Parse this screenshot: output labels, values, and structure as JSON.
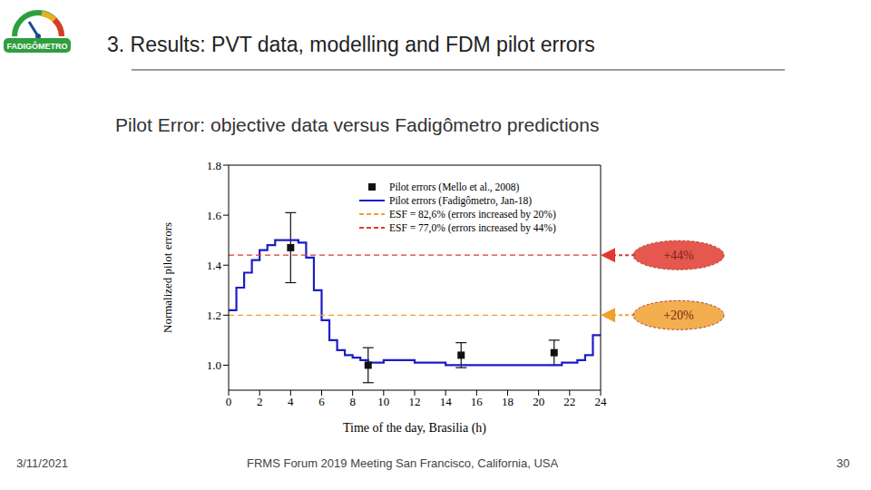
{
  "header": {
    "title": "3. Results: PVT data, modelling and FDM pilot errors",
    "logo": "FADIGÔMETRO"
  },
  "subtitle": "Pilot Error: objective data versus Fadigômetro predictions",
  "footer": {
    "date": "3/11/2021",
    "event": "FRMS Forum 2019 Meeting San Francisco, California, USA",
    "page": "30"
  },
  "chart_data": {
    "type": "line",
    "x_label": "Time of the day, Brasilia (h)",
    "y_label": "Normalized pilot errors",
    "xlim": [
      0,
      24
    ],
    "xticks": [
      0,
      2,
      4,
      6,
      8,
      10,
      12,
      14,
      16,
      18,
      20,
      22,
      24
    ],
    "ylim": [
      0.9,
      1.8
    ],
    "yticks": [
      {
        "value": 1,
        "label": "1.0"
      },
      1.2,
      1.4,
      1.6,
      1.8
    ],
    "legend": "top-right",
    "series": [
      {
        "name": "Pilot errors (Mello et al., 2008)",
        "type": "scatter",
        "marker": "square",
        "color": "#111111",
        "x": [
          4,
          9,
          15,
          21
        ],
        "values": [
          1.47,
          1.0,
          1.04,
          1.05
        ],
        "error": [
          0.14,
          0.07,
          0.05,
          0.05
        ]
      },
      {
        "name": "Pilot errors (Fadigômetro, Jan-18)",
        "type": "line",
        "line_style": "step",
        "color": "#1c1cc8",
        "x": [
          0,
          0.5,
          1,
          1.5,
          2,
          2.5,
          3,
          3.5,
          4,
          4.5,
          5,
          5.5,
          6,
          6.5,
          7,
          7.5,
          8,
          8.5,
          9,
          9.5,
          10,
          10.5,
          11,
          11.5,
          12,
          12.5,
          13,
          13.5,
          14,
          14.5,
          15,
          15.5,
          16,
          16.5,
          17,
          17.5,
          18,
          18.5,
          19,
          19.5,
          20,
          20.5,
          21,
          21.5,
          22,
          22.5,
          23,
          23.5,
          24
        ],
        "values": [
          1.22,
          1.31,
          1.37,
          1.42,
          1.46,
          1.48,
          1.5,
          1.5,
          1.5,
          1.49,
          1.43,
          1.3,
          1.18,
          1.1,
          1.06,
          1.04,
          1.03,
          1.02,
          1.01,
          1.01,
          1.02,
          1.02,
          1.02,
          1.02,
          1.01,
          1.01,
          1.01,
          1.01,
          1.0,
          1.0,
          1.0,
          1.0,
          1.0,
          1.0,
          1.0,
          1.0,
          1.0,
          1.0,
          1.0,
          1.0,
          1.0,
          1.0,
          1.0,
          1.01,
          1.01,
          1.02,
          1.04,
          1.12,
          1.12
        ]
      },
      {
        "name": "ESF = 82,6% (errors increased by 20%)",
        "type": "hline",
        "line_style": "dashed",
        "color": "#f0a030",
        "values": [
          1.2
        ],
        "annotation": "+20%"
      },
      {
        "name": "ESF = 77,0% (errors increased by 44%)",
        "type": "hline",
        "line_style": "dashed",
        "color": "#e03a30",
        "values": [
          1.44
        ],
        "annotation": "+44%"
      }
    ]
  }
}
